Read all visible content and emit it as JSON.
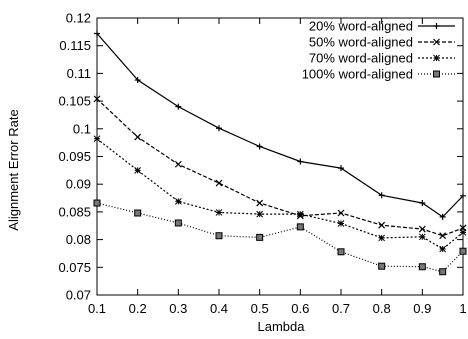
{
  "chart_data": {
    "type": "line",
    "title": "",
    "xlabel": "Lambda",
    "ylabel": "Alignment Error Rate",
    "xlim": [
      0.1,
      1
    ],
    "ylim": [
      0.07,
      0.12
    ],
    "x_ticks": [
      "0.1",
      "0.2",
      "0.3",
      "0.4",
      "0.5",
      "0.6",
      "0.7",
      "0.8",
      "0.9",
      "1"
    ],
    "y_ticks": [
      "0.07",
      "0.075",
      "0.08",
      "0.085",
      "0.09",
      "0.095",
      "0.1",
      "0.105",
      "0.11",
      "0.115",
      "0.12"
    ],
    "legend_position": "top-right",
    "grid": false,
    "x": [
      0.1,
      0.2,
      0.3,
      0.4,
      0.5,
      0.6,
      0.7,
      0.8,
      0.9,
      0.95,
      1.0
    ],
    "series": [
      {
        "name": "20% word-aligned",
        "dash": "solid",
        "marker": "plus",
        "values": [
          0.1172,
          0.1088,
          0.104,
          0.1001,
          0.0968,
          0.0941,
          0.0929,
          0.088,
          0.0866,
          0.0841,
          0.0879
        ]
      },
      {
        "name": "50% word-aligned",
        "dash": "dashed",
        "marker": "cross",
        "values": [
          0.1054,
          0.0985,
          0.0936,
          0.0902,
          0.0866,
          0.0843,
          0.0848,
          0.0826,
          0.0819,
          0.0807,
          0.0821
        ]
      },
      {
        "name": "70% word-aligned",
        "dash": "dotted",
        "marker": "star",
        "values": [
          0.0982,
          0.0925,
          0.0869,
          0.0849,
          0.0846,
          0.0846,
          0.0829,
          0.0803,
          0.0805,
          0.0783,
          0.0813
        ]
      },
      {
        "name": "100% word-aligned",
        "dash": "dense-dotted",
        "marker": "square",
        "values": [
          0.0866,
          0.0848,
          0.083,
          0.0807,
          0.0804,
          0.0823,
          0.0778,
          0.0752,
          0.0751,
          0.0742,
          0.0779
        ]
      }
    ]
  }
}
